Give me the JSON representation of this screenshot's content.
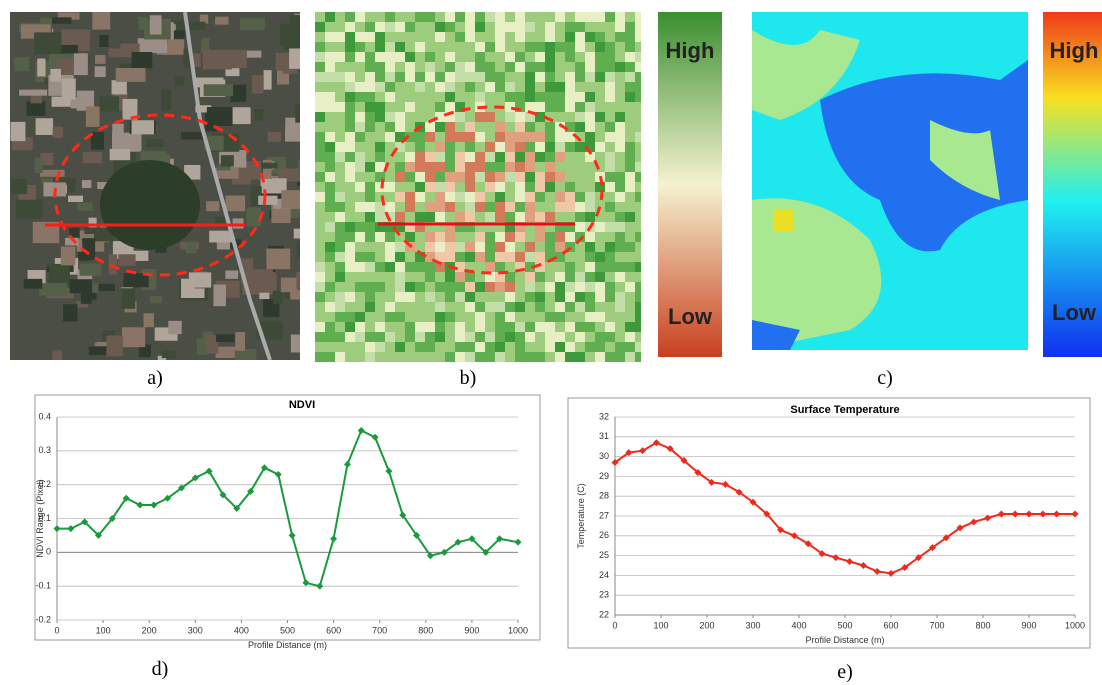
{
  "panel_labels": [
    "a)",
    "b)",
    "c)",
    "d)",
    "e)"
  ],
  "colorbars": [
    {
      "high": "High",
      "low": "Low"
    },
    {
      "high": "High",
      "low": "Low"
    }
  ],
  "chart_data": [
    {
      "type": "line",
      "title": "NDVI",
      "x_label": "Profile Distance (m)",
      "y_label": "NDVI Range (Pixel)",
      "x": [
        0,
        30,
        60,
        90,
        120,
        150,
        180,
        210,
        240,
        270,
        300,
        330,
        360,
        390,
        420,
        450,
        480,
        510,
        540,
        570,
        600,
        630,
        660,
        690,
        720,
        750,
        780,
        810,
        840,
        870,
        900,
        930,
        960,
        1000
      ],
      "series": [
        {
          "name": "NDVI",
          "color": "#1a9a3c",
          "values": [
            0.07,
            0.07,
            0.09,
            0.05,
            0.1,
            0.16,
            0.14,
            0.14,
            0.16,
            0.19,
            0.22,
            0.24,
            0.17,
            0.13,
            0.18,
            0.25,
            0.23,
            0.05,
            -0.09,
            -0.1,
            0.04,
            0.26,
            0.36,
            0.34,
            0.24,
            0.11,
            0.05,
            -0.01,
            0,
            0.03,
            0.04,
            0,
            0.04,
            0.03
          ]
        }
      ],
      "xlim": [
        0,
        1000
      ],
      "xticks": [
        0,
        100,
        200,
        300,
        400,
        500,
        600,
        700,
        800,
        900,
        1000
      ],
      "ylim": [
        -0.2,
        0.4
      ],
      "yticks": [
        -0.2,
        -0.1,
        0,
        0.1,
        0.2,
        0.3,
        0.4
      ],
      "grid": true
    },
    {
      "type": "line",
      "title": "Surface Temperature",
      "x_label": "Profile Distance (m)",
      "y_label": "Temperature (C)",
      "x": [
        0,
        30,
        60,
        90,
        120,
        150,
        180,
        210,
        240,
        270,
        300,
        330,
        360,
        390,
        420,
        450,
        480,
        510,
        540,
        570,
        600,
        630,
        660,
        690,
        720,
        750,
        780,
        810,
        840,
        870,
        900,
        930,
        960,
        1000
      ],
      "series": [
        {
          "name": "Surface Temperature",
          "color": "#ee2a1b",
          "values": [
            29.7,
            30.2,
            30.3,
            30.7,
            30.4,
            29.8,
            29.2,
            28.7,
            28.6,
            28.2,
            27.7,
            27.1,
            26.3,
            26,
            25.6,
            25.1,
            24.9,
            24.7,
            24.5,
            24.2,
            24.1,
            24.4,
            24.9,
            25.4,
            25.9,
            26.4,
            26.7,
            26.9,
            27.1,
            27.1,
            27.1,
            27.1,
            27.1,
            27.1
          ]
        }
      ],
      "xlim": [
        0,
        1000
      ],
      "xticks": [
        0,
        100,
        200,
        300,
        400,
        500,
        600,
        700,
        800,
        900,
        1000
      ],
      "ylim": [
        22,
        32
      ],
      "yticks": [
        22,
        23,
        24,
        25,
        26,
        27,
        28,
        29,
        30,
        31,
        32
      ],
      "grid": true
    }
  ]
}
